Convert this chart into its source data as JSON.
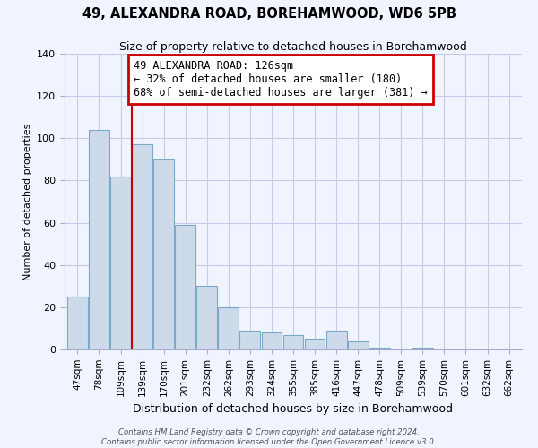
{
  "title": "49, ALEXANDRA ROAD, BOREHAMWOOD, WD6 5PB",
  "subtitle": "Size of property relative to detached houses in Borehamwood",
  "xlabel": "Distribution of detached houses by size in Borehamwood",
  "ylabel": "Number of detached properties",
  "categories": [
    "47sqm",
    "78sqm",
    "109sqm",
    "139sqm",
    "170sqm",
    "201sqm",
    "232sqm",
    "262sqm",
    "293sqm",
    "324sqm",
    "355sqm",
    "385sqm",
    "416sqm",
    "447sqm",
    "478sqm",
    "509sqm",
    "539sqm",
    "570sqm",
    "601sqm",
    "632sqm",
    "662sqm"
  ],
  "values": [
    25,
    104,
    82,
    97,
    90,
    59,
    30,
    20,
    9,
    8,
    7,
    5,
    9,
    4,
    1,
    0,
    1,
    0,
    0,
    0,
    0
  ],
  "bar_color": "#ccdaea",
  "bar_edge_color": "#7aaac8",
  "property_line_x": 2.5,
  "annotation_title": "49 ALEXANDRA ROAD: 126sqm",
  "annotation_line1": "← 32% of detached houses are smaller (180)",
  "annotation_line2": "68% of semi-detached houses are larger (381) →",
  "annotation_box_color": "#ffffff",
  "annotation_box_edge": "#cc0000",
  "vline_color": "#cc0000",
  "ylim": [
    0,
    140
  ],
  "footer1": "Contains HM Land Registry data © Crown copyright and database right 2024.",
  "footer2": "Contains public sector information licensed under the Open Government Licence v3.0.",
  "background_color": "#f0f4ff",
  "grid_color": "#c8cce8"
}
